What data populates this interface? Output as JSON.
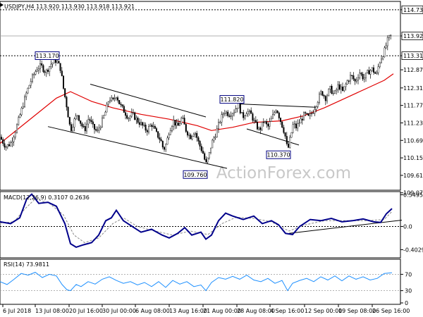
{
  "chart_data": [
    {
      "type": "candlestick",
      "header": "USDJPY,H4 113.920 113.930 113.918 113.921",
      "symbol": "USDJPY",
      "timeframe": "H4",
      "ohlc": {
        "open": "113.920",
        "high": "113.930",
        "low": "113.918",
        "close": "113.921"
      },
      "watermark": "ActionForex.com",
      "ylim": [
        109.2,
        114.9
      ],
      "y_ticks": [
        "114.730",
        "113.921",
        "113.310",
        "112.875",
        "112.315",
        "111.775",
        "111.235",
        "110.695",
        "110.155",
        "109.615",
        "109.075"
      ],
      "y_tick_values": [
        114.73,
        113.921,
        113.31,
        112.875,
        112.315,
        111.775,
        111.235,
        110.695,
        110.155,
        109.615,
        109.075
      ],
      "highlight_levels": [
        {
          "label": "114.730",
          "value": 114.73,
          "style": "dotted"
        },
        {
          "label": "113.921",
          "value": 113.921,
          "style": "current-price"
        },
        {
          "label": "113.310",
          "value": 113.31,
          "style": "dotted-highlight"
        }
      ],
      "x_ticks": [
        "6 Jul 2018",
        "13 Jul 08:00",
        "20 Jul 16:00",
        "30 Jul 00:00",
        "6 Aug 08:00",
        "13 Aug 16:00",
        "21 Aug 00:00",
        "28 Aug 08:00",
        "4 Sep 16:00",
        "12 Sep 00:00",
        "19 Sep 08:00",
        "26 Sep 16:00"
      ],
      "price_path": [
        [
          0,
          110.8
        ],
        [
          8,
          110.5
        ],
        [
          15,
          110.6
        ],
        [
          22,
          111.0
        ],
        [
          30,
          111.6
        ],
        [
          38,
          112.2
        ],
        [
          45,
          112.6
        ],
        [
          52,
          112.9
        ],
        [
          58,
          113.0
        ],
        [
          65,
          112.8
        ],
        [
          72,
          113.05
        ],
        [
          80,
          113.17
        ],
        [
          86,
          112.9
        ],
        [
          90,
          112.3
        ],
        [
          95,
          111.7
        ],
        [
          100,
          111.0
        ],
        [
          105,
          111.3
        ],
        [
          110,
          111.5
        ],
        [
          115,
          111.2
        ],
        [
          120,
          111.0
        ],
        [
          126,
          111.4
        ],
        [
          132,
          111.1
        ],
        [
          138,
          110.95
        ],
        [
          145,
          111.3
        ],
        [
          150,
          111.6
        ],
        [
          155,
          112.0
        ],
        [
          160,
          111.9
        ],
        [
          165,
          112.1
        ],
        [
          170,
          111.8
        ],
        [
          176,
          111.6
        ],
        [
          182,
          111.4
        ],
        [
          188,
          111.5
        ],
        [
          195,
          111.3
        ],
        [
          200,
          111.2
        ],
        [
          208,
          111.0
        ],
        [
          215,
          111.2
        ],
        [
          222,
          110.9
        ],
        [
          228,
          110.7
        ],
        [
          232,
          110.4
        ],
        [
          236,
          110.6
        ],
        [
          240,
          111.0
        ],
        [
          246,
          111.3
        ],
        [
          252,
          111.1
        ],
        [
          258,
          111.4
        ],
        [
          264,
          111.0
        ],
        [
          270,
          110.8
        ],
        [
          276,
          111.0
        ],
        [
          282,
          110.6
        ],
        [
          288,
          110.3
        ],
        [
          292,
          109.95
        ],
        [
          296,
          110.2
        ],
        [
          300,
          110.6
        ],
        [
          306,
          110.9
        ],
        [
          312,
          111.3
        ],
        [
          318,
          111.6
        ],
        [
          325,
          111.5
        ],
        [
          332,
          111.6
        ],
        [
          338,
          111.82
        ],
        [
          344,
          111.4
        ],
        [
          350,
          111.6
        ],
        [
          356,
          111.5
        ],
        [
          362,
          111.2
        ],
        [
          368,
          111.0
        ],
        [
          374,
          111.3
        ],
        [
          380,
          111.1
        ],
        [
          386,
          111.4
        ],
        [
          392,
          111.7
        ],
        [
          398,
          111.3
        ],
        [
          404,
          110.9
        ],
        [
          408,
          110.37
        ],
        [
          412,
          110.8
        ],
        [
          416,
          111.2
        ],
        [
          420,
          111.1
        ],
        [
          426,
          111.3
        ],
        [
          432,
          111.5
        ],
        [
          438,
          111.4
        ],
        [
          444,
          111.6
        ],
        [
          450,
          111.9
        ],
        [
          456,
          112.2
        ],
        [
          462,
          112.0
        ],
        [
          468,
          112.3
        ],
        [
          474,
          112.1
        ],
        [
          480,
          112.4
        ],
        [
          486,
          112.2
        ],
        [
          492,
          112.5
        ],
        [
          498,
          112.7
        ],
        [
          504,
          112.5
        ],
        [
          510,
          112.8
        ],
        [
          516,
          112.6
        ],
        [
          522,
          112.8
        ],
        [
          528,
          112.9
        ],
        [
          534,
          112.7
        ],
        [
          538,
          113.1
        ],
        [
          542,
          113.3
        ],
        [
          546,
          113.5
        ],
        [
          550,
          113.8
        ],
        [
          554,
          113.921
        ]
      ],
      "ma_path": [
        [
          0,
          110.6
        ],
        [
          40,
          111.3
        ],
        [
          80,
          112.0
        ],
        [
          100,
          112.2
        ],
        [
          130,
          111.9
        ],
        [
          160,
          111.7
        ],
        [
          200,
          111.5
        ],
        [
          240,
          111.35
        ],
        [
          280,
          111.15
        ],
        [
          300,
          111.0
        ],
        [
          330,
          111.1
        ],
        [
          360,
          111.25
        ],
        [
          400,
          111.3
        ],
        [
          430,
          111.45
        ],
        [
          460,
          111.7
        ],
        [
          490,
          112.0
        ],
        [
          520,
          112.3
        ],
        [
          545,
          112.55
        ],
        [
          558,
          112.75
        ]
      ],
      "trendlines": [
        {
          "from": [
            128,
            112.43
          ],
          "to": [
            292,
            111.42
          ]
        },
        {
          "from": [
            68,
            111.12
          ],
          "to": [
            322,
            109.83
          ]
        },
        {
          "from": [
            340,
            111.82
          ],
          "to": [
            448,
            111.72
          ]
        },
        {
          "from": [
            350,
            111.05
          ],
          "to": [
            424,
            110.55
          ]
        }
      ],
      "annotations": [
        {
          "text": "113.170",
          "x": 80,
          "y": 113.17
        },
        {
          "text": "111.820",
          "x": 342,
          "y": 111.82
        },
        {
          "text": "110.370",
          "x": 408,
          "y": 110.37
        },
        {
          "text": "109.760",
          "x": 290,
          "y": 109.76
        }
      ]
    },
    {
      "type": "line",
      "name": "MACD",
      "header": "MACD(12,26,9) 0.3107 0.2636",
      "ylim": [
        -0.52,
        0.58
      ],
      "y_ticks": [
        "0.5495",
        "-0.4029"
      ],
      "y_tick_values": [
        0.5495,
        -0.4029
      ],
      "zero_ticks": [
        "0.0"
      ],
      "main_path": [
        [
          0,
          0.08
        ],
        [
          15,
          0.05
        ],
        [
          28,
          0.15
        ],
        [
          38,
          0.48
        ],
        [
          45,
          0.56
        ],
        [
          55,
          0.4
        ],
        [
          68,
          0.42
        ],
        [
          80,
          0.35
        ],
        [
          92,
          0.05
        ],
        [
          100,
          -0.3
        ],
        [
          108,
          -0.36
        ],
        [
          118,
          -0.32
        ],
        [
          130,
          -0.28
        ],
        [
          140,
          -0.15
        ],
        [
          150,
          0.1
        ],
        [
          158,
          0.15
        ],
        [
          165,
          0.28
        ],
        [
          175,
          0.1
        ],
        [
          185,
          0.02
        ],
        [
          200,
          -0.1
        ],
        [
          215,
          -0.05
        ],
        [
          230,
          -0.15
        ],
        [
          240,
          -0.2
        ],
        [
          252,
          -0.12
        ],
        [
          262,
          -0.02
        ],
        [
          272,
          -0.15
        ],
        [
          285,
          -0.1
        ],
        [
          292,
          -0.22
        ],
        [
          300,
          -0.15
        ],
        [
          310,
          0.1
        ],
        [
          320,
          0.23
        ],
        [
          330,
          0.18
        ],
        [
          345,
          0.12
        ],
        [
          360,
          0.18
        ],
        [
          372,
          0.05
        ],
        [
          385,
          0.1
        ],
        [
          395,
          0.03
        ],
        [
          405,
          -0.12
        ],
        [
          415,
          -0.14
        ],
        [
          425,
          0.0
        ],
        [
          440,
          0.12
        ],
        [
          455,
          0.1
        ],
        [
          470,
          0.14
        ],
        [
          485,
          0.08
        ],
        [
          500,
          0.1
        ],
        [
          515,
          0.13
        ],
        [
          530,
          0.08
        ],
        [
          540,
          0.07
        ],
        [
          548,
          0.22
        ],
        [
          556,
          0.31
        ]
      ],
      "signal_path": [
        [
          0,
          0.06
        ],
        [
          20,
          0.08
        ],
        [
          35,
          0.3
        ],
        [
          50,
          0.48
        ],
        [
          70,
          0.4
        ],
        [
          90,
          0.2
        ],
        [
          105,
          -0.15
        ],
        [
          120,
          -0.28
        ],
        [
          140,
          -0.2
        ],
        [
          160,
          0.05
        ],
        [
          175,
          0.15
        ],
        [
          195,
          0.0
        ],
        [
          220,
          -0.08
        ],
        [
          245,
          -0.15
        ],
        [
          270,
          -0.08
        ],
        [
          295,
          -0.14
        ],
        [
          315,
          0.05
        ],
        [
          335,
          0.16
        ],
        [
          360,
          0.14
        ],
        [
          385,
          0.08
        ],
        [
          410,
          -0.08
        ],
        [
          430,
          0.02
        ],
        [
          460,
          0.1
        ],
        [
          490,
          0.1
        ],
        [
          520,
          0.1
        ],
        [
          545,
          0.12
        ],
        [
          556,
          0.26
        ]
      ],
      "trendline": {
        "from": [
          410,
          -0.12
        ],
        "to": [
          570,
          0.11
        ]
      }
    },
    {
      "type": "line",
      "name": "RSI",
      "header": "RSI(14) 73.9811",
      "ylim": [
        0,
        100
      ],
      "y_ticks": [
        "70",
        "30",
        "0"
      ],
      "y_tick_values": [
        70,
        30,
        0
      ],
      "levels": [
        70,
        30
      ],
      "rsi_path": [
        [
          0,
          52
        ],
        [
          10,
          45
        ],
        [
          20,
          58
        ],
        [
          30,
          72
        ],
        [
          40,
          68
        ],
        [
          50,
          75
        ],
        [
          60,
          62
        ],
        [
          70,
          70
        ],
        [
          80,
          66
        ],
        [
          88,
          45
        ],
        [
          95,
          32
        ],
        [
          100,
          30
        ],
        [
          108,
          45
        ],
        [
          115,
          40
        ],
        [
          125,
          52
        ],
        [
          135,
          46
        ],
        [
          145,
          58
        ],
        [
          155,
          64
        ],
        [
          165,
          55
        ],
        [
          175,
          48
        ],
        [
          185,
          52
        ],
        [
          195,
          44
        ],
        [
          205,
          50
        ],
        [
          215,
          40
        ],
        [
          225,
          52
        ],
        [
          235,
          38
        ],
        [
          245,
          55
        ],
        [
          255,
          46
        ],
        [
          265,
          52
        ],
        [
          275,
          40
        ],
        [
          285,
          44
        ],
        [
          292,
          30
        ],
        [
          300,
          50
        ],
        [
          310,
          62
        ],
        [
          320,
          58
        ],
        [
          330,
          65
        ],
        [
          340,
          58
        ],
        [
          350,
          68
        ],
        [
          360,
          56
        ],
        [
          370,
          52
        ],
        [
          380,
          60
        ],
        [
          390,
          48
        ],
        [
          400,
          55
        ],
        [
          408,
          30
        ],
        [
          415,
          48
        ],
        [
          425,
          55
        ],
        [
          435,
          60
        ],
        [
          445,
          52
        ],
        [
          455,
          64
        ],
        [
          465,
          56
        ],
        [
          475,
          66
        ],
        [
          485,
          54
        ],
        [
          495,
          66
        ],
        [
          505,
          58
        ],
        [
          515,
          64
        ],
        [
          525,
          56
        ],
        [
          535,
          60
        ],
        [
          545,
          72
        ],
        [
          556,
          74
        ]
      ]
    }
  ]
}
